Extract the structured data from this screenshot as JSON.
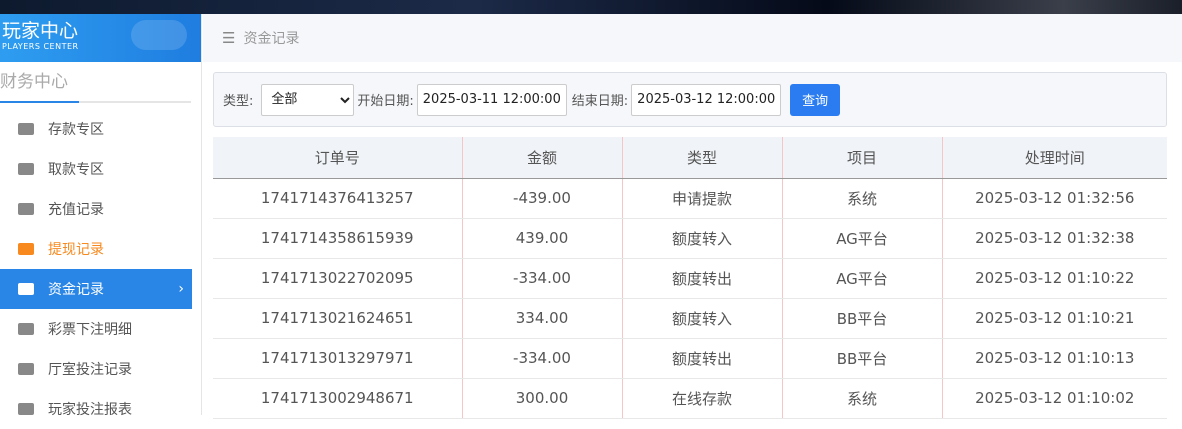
{
  "logo": {
    "title": "玩家中心",
    "subtitle": "PLAYERS CENTER"
  },
  "sidebar": {
    "section": "财务中心",
    "items": [
      {
        "label": "存款专区",
        "icon": "card-icon"
      },
      {
        "label": "取款专区",
        "icon": "hand-money-icon"
      },
      {
        "label": "充值记录",
        "icon": "money-bag-icon"
      },
      {
        "label": "提现记录",
        "icon": "wallet-icon",
        "state": "highlight"
      },
      {
        "label": "资金记录",
        "icon": "fund-icon",
        "state": "active"
      },
      {
        "label": "彩票下注明细",
        "icon": "list-icon"
      },
      {
        "label": "厅室投注记录",
        "icon": "list-bullet-icon"
      },
      {
        "label": "玩家投注报表",
        "icon": "report-icon"
      }
    ]
  },
  "breadcrumb": {
    "icon": "menu-icon",
    "title": "资金记录"
  },
  "filter": {
    "type_label": "类型:",
    "type_value": "全部",
    "start_label": "开始日期:",
    "start_value": "2025-03-11 12:00:00",
    "end_label": "结束日期:",
    "end_value": "2025-03-12 12:00:00",
    "query": "查询"
  },
  "table": {
    "columns": [
      "订单号",
      "金额",
      "类型",
      "项目",
      "处理时间"
    ],
    "rows": [
      [
        "1741714376413257",
        "-439.00",
        "申请提款",
        "系统",
        "2025-03-12 01:32:56"
      ],
      [
        "1741714358615939",
        "439.00",
        "额度转入",
        "AG平台",
        "2025-03-12 01:32:38"
      ],
      [
        "1741713022702095",
        "-334.00",
        "额度转出",
        "AG平台",
        "2025-03-12 01:10:22"
      ],
      [
        "1741713021624651",
        "334.00",
        "额度转入",
        "BB平台",
        "2025-03-12 01:10:21"
      ],
      [
        "1741713013297971",
        "-334.00",
        "额度转出",
        "BB平台",
        "2025-03-12 01:10:13"
      ],
      [
        "1741713002948671",
        "300.00",
        "在线存款",
        "系统",
        "2025-03-12 01:10:02"
      ]
    ]
  },
  "colors": {
    "accent": "#2a86e6",
    "highlight": "#f7891e"
  }
}
